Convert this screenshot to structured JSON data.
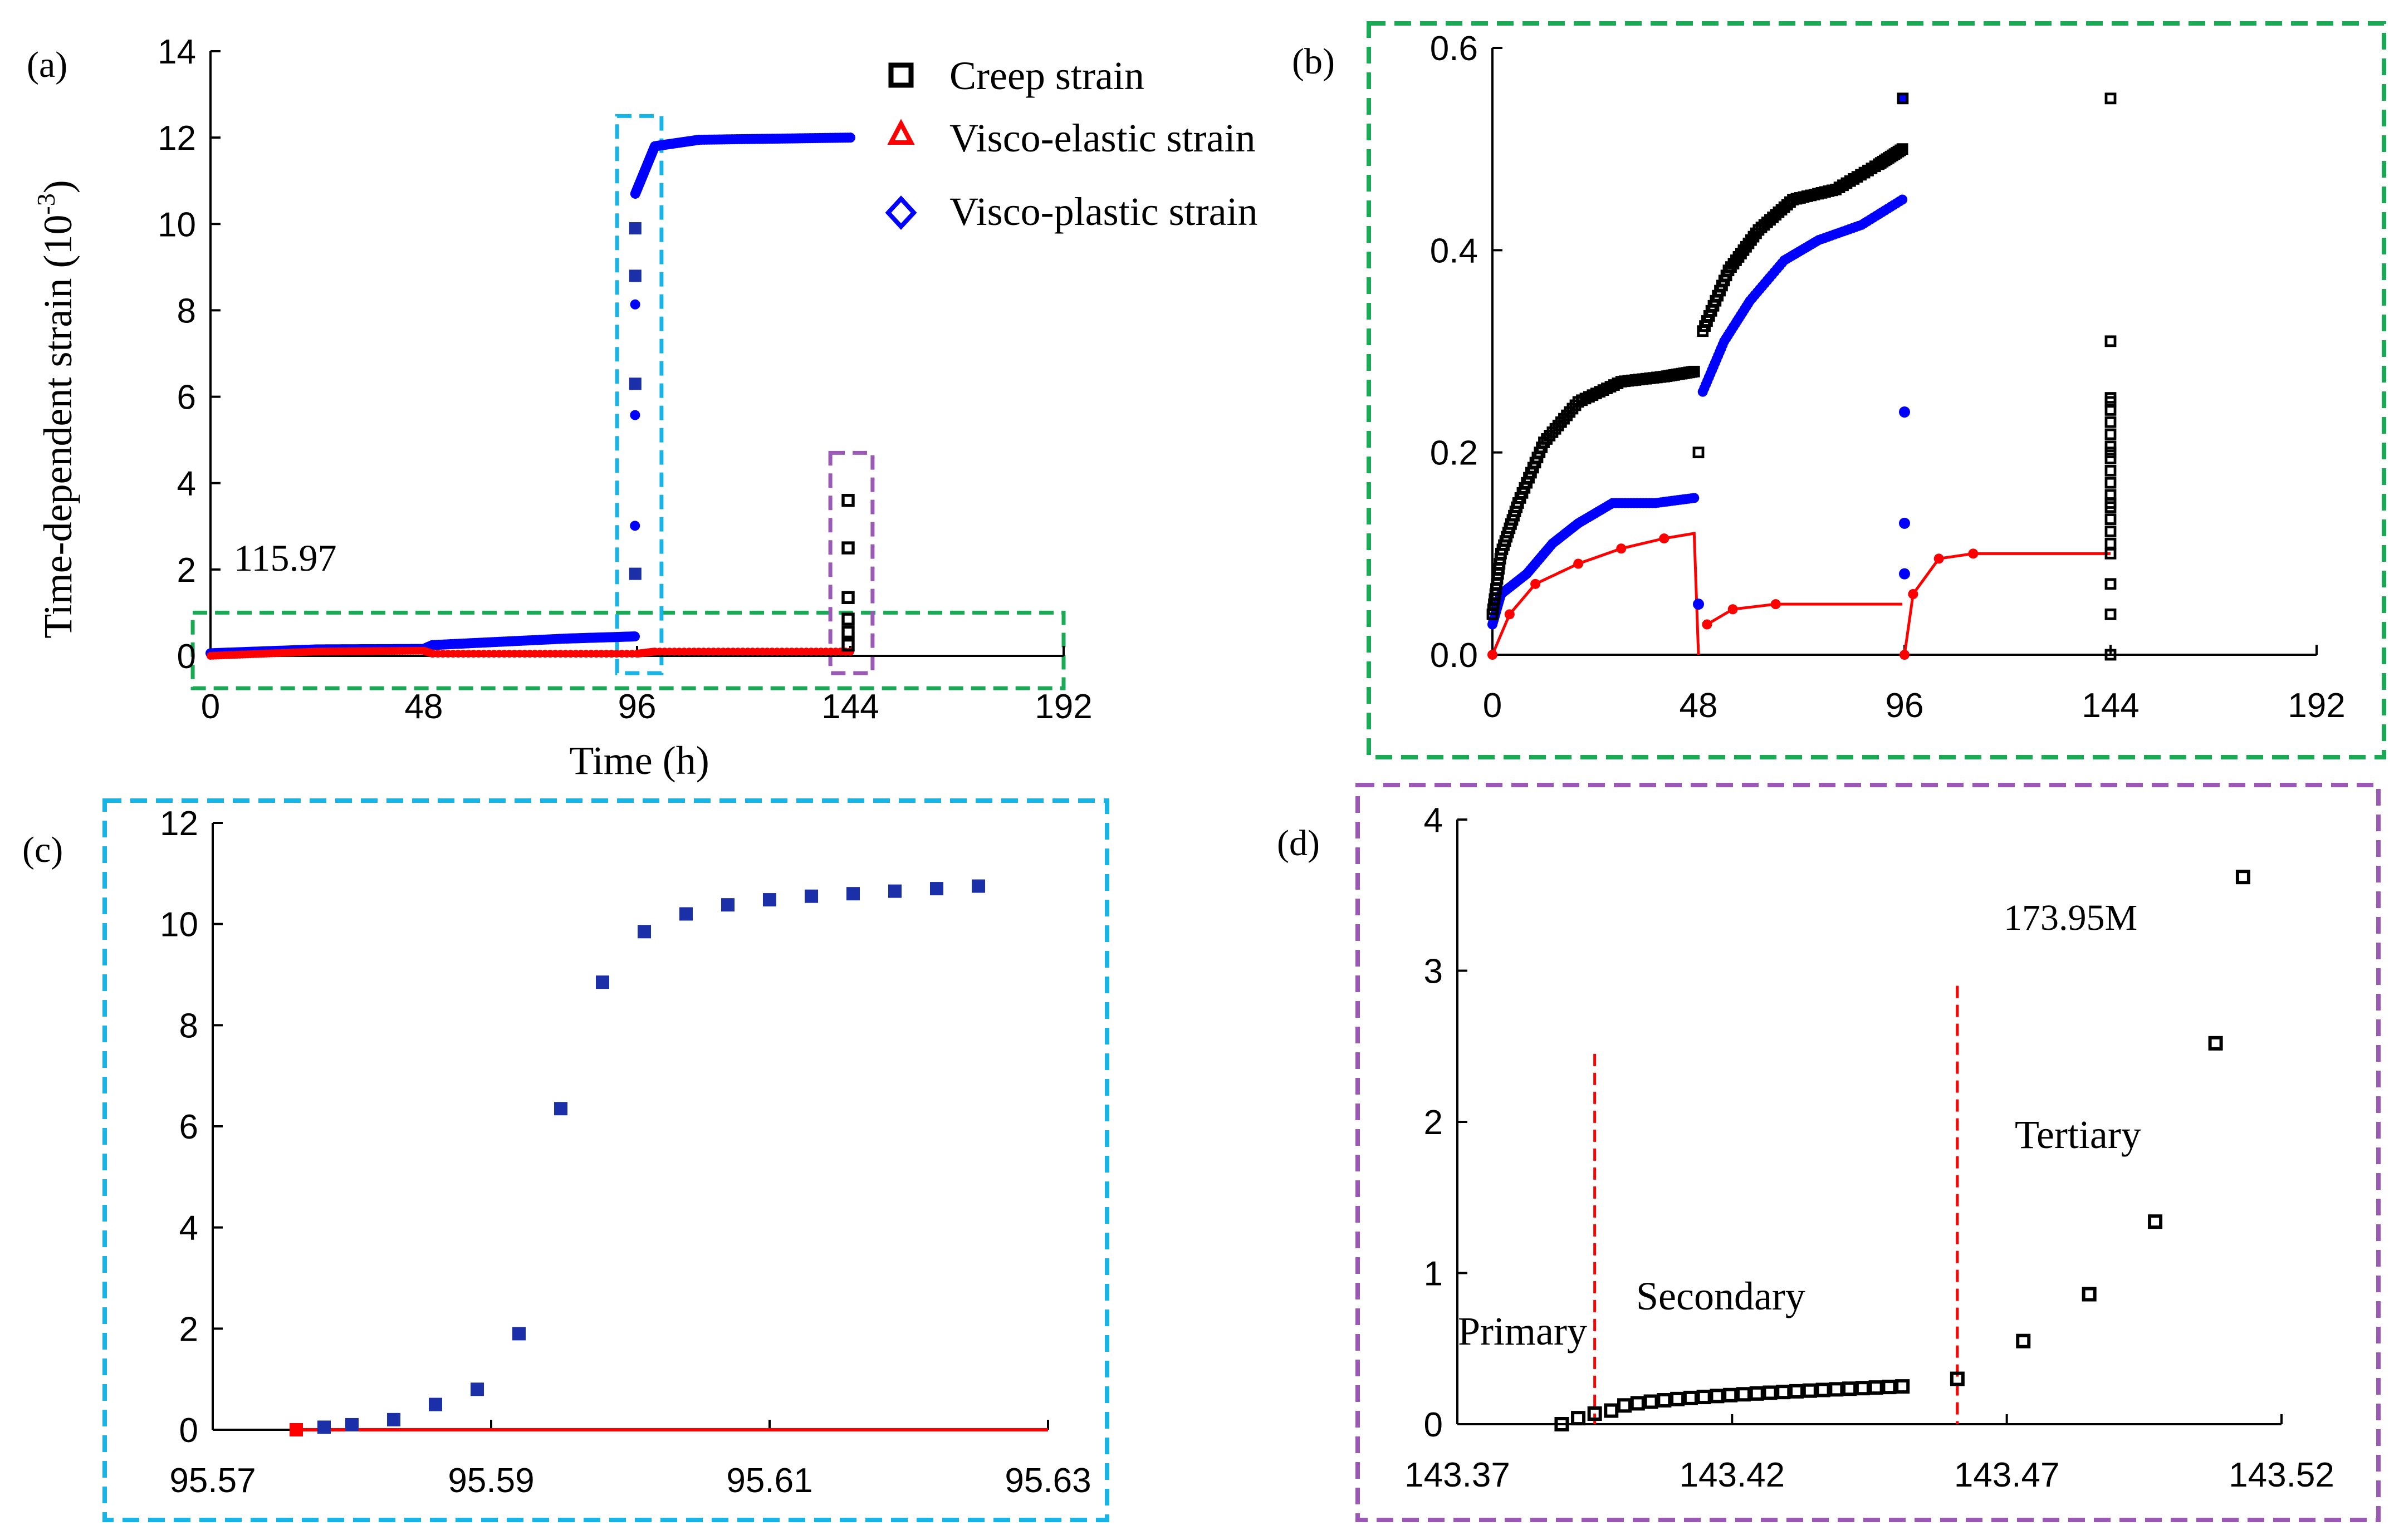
{
  "colors": {
    "creep": "#000000",
    "visco_elastic": "#ff0000",
    "visco_plastic": "#0000ff",
    "visco_plastic_inset": "#1a2fa8",
    "box_green": "#1aaa55",
    "box_cyan": "#18b4e6",
    "box_purple": "#9b59b6",
    "stage_line": "#ff0000"
  },
  "legend": {
    "creep": "Creep strain",
    "visco_elastic": "Visco-elastic strain",
    "visco_plastic": "Visco-plastic strain"
  },
  "chart_data": [
    {
      "panel": "(a)",
      "type": "scatter",
      "xlabel": "Time (h)",
      "ylabel_main": "Time-dependent strain (10",
      "ylabel_exp": "-3",
      "ylabel_end": ")",
      "xlim": [
        0,
        192
      ],
      "ylim": [
        0,
        14
      ],
      "xticks": [
        0,
        48,
        96,
        144,
        192
      ],
      "yticks": [
        0,
        2,
        4,
        6,
        8,
        10,
        12,
        14
      ],
      "annotation": "115.97",
      "legend_position": "top-right",
      "series": [
        {
          "name": "Creep strain",
          "points": [
            [
              95.6,
              1.9
            ],
            [
              95.6,
              6.3
            ],
            [
              95.6,
              8.8
            ],
            [
              95.6,
              9.9
            ],
            [
              143.5,
              0.25
            ],
            [
              143.5,
              0.55
            ],
            [
              143.5,
              0.85
            ],
            [
              143.5,
              1.35
            ],
            [
              143.5,
              2.5
            ],
            [
              143.5,
              3.6
            ]
          ]
        },
        {
          "name": "Visco-elastic strain",
          "points": [
            [
              0,
              0
            ],
            [
              24,
              0.1
            ],
            [
              48,
              0.12
            ],
            [
              50,
              0.05
            ],
            [
              96,
              0.05
            ],
            [
              100,
              0.1
            ],
            [
              144,
              0.1
            ]
          ]
        },
        {
          "name": "Visco-plastic strain",
          "points": [
            [
              0,
              0.06
            ],
            [
              24,
              0.15
            ],
            [
              48,
              0.16
            ],
            [
              50,
              0.25
            ],
            [
              80,
              0.4
            ],
            [
              95.5,
              0.45
            ],
            [
              95.6,
              10.7
            ],
            [
              100,
              11.8
            ],
            [
              110,
              11.95
            ],
            [
              144,
              12.0
            ]
          ]
        }
      ]
    },
    {
      "panel": "(b)",
      "type": "scatter",
      "xlim": [
        0,
        192
      ],
      "ylim": [
        0,
        0.6
      ],
      "xticks": [
        0,
        48,
        96,
        144,
        192
      ],
      "yticks": [
        "0.0",
        "0.2",
        "0.4",
        "0.6"
      ],
      "series": [
        {
          "name": "Creep strain",
          "points": [
            [
              0,
              0.04
            ],
            [
              2,
              0.1
            ],
            [
              6,
              0.15
            ],
            [
              12,
              0.21
            ],
            [
              20,
              0.25
            ],
            [
              30,
              0.27
            ],
            [
              40,
              0.275
            ],
            [
              47,
              0.28
            ],
            [
              48,
              0.2
            ],
            [
              49,
              0.32
            ],
            [
              55,
              0.38
            ],
            [
              62,
              0.42
            ],
            [
              70,
              0.45
            ],
            [
              80,
              0.46
            ],
            [
              90,
              0.485
            ],
            [
              95.5,
              0.5
            ],
            [
              95.6,
              0.55
            ],
            [
              144,
              0.55
            ],
            [
              144,
              0.31
            ],
            [
              144,
              0.25
            ],
            [
              144,
              0.2
            ],
            [
              144,
              0.15
            ],
            [
              144,
              0.1
            ],
            [
              144,
              0.07
            ],
            [
              144,
              0.04
            ],
            [
              144,
              0.0
            ]
          ]
        },
        {
          "name": "Visco-elastic strain",
          "points": [
            [
              0,
              0
            ],
            [
              4,
              0.04
            ],
            [
              10,
              0.07
            ],
            [
              20,
              0.09
            ],
            [
              30,
              0.105
            ],
            [
              40,
              0.115
            ],
            [
              47,
              0.12
            ],
            [
              48,
              0.0
            ],
            [
              50,
              0.03
            ],
            [
              56,
              0.045
            ],
            [
              66,
              0.05
            ],
            [
              80,
              0.05
            ],
            [
              95.5,
              0.05
            ],
            [
              96,
              0.0
            ],
            [
              98,
              0.06
            ],
            [
              104,
              0.095
            ],
            [
              112,
              0.1
            ],
            [
              124,
              0.1
            ],
            [
              144,
              0.1
            ]
          ]
        },
        {
          "name": "Visco-plastic strain",
          "points": [
            [
              0,
              0.03
            ],
            [
              2,
              0.06
            ],
            [
              8,
              0.08
            ],
            [
              14,
              0.11
            ],
            [
              20,
              0.13
            ],
            [
              28,
              0.15
            ],
            [
              38,
              0.15
            ],
            [
              47,
              0.155
            ],
            [
              48,
              0.05
            ],
            [
              49,
              0.26
            ],
            [
              54,
              0.31
            ],
            [
              60,
              0.35
            ],
            [
              68,
              0.39
            ],
            [
              76,
              0.41
            ],
            [
              86,
              0.425
            ],
            [
              95.5,
              0.45
            ],
            [
              95.6,
              0.55
            ],
            [
              96,
              0.24
            ],
            [
              96,
              0.13
            ],
            [
              96,
              0.08
            ]
          ]
        }
      ]
    },
    {
      "panel": "(c)",
      "type": "scatter",
      "xlim": [
        95.57,
        95.63
      ],
      "ylim": [
        0,
        12
      ],
      "xticks": [
        "95.57",
        "95.59",
        "95.61",
        "95.63"
      ],
      "yticks": [
        0,
        2,
        4,
        6,
        8,
        10,
        12
      ],
      "series": [
        {
          "name": "Visco-plastic strain",
          "points": [
            [
              95.576,
              0.0
            ],
            [
              95.578,
              0.05
            ],
            [
              95.58,
              0.1
            ],
            [
              95.583,
              0.2
            ],
            [
              95.586,
              0.5
            ],
            [
              95.589,
              0.8
            ],
            [
              95.592,
              1.9
            ],
            [
              95.595,
              6.35
            ],
            [
              95.598,
              8.85
            ],
            [
              95.601,
              9.85
            ],
            [
              95.604,
              10.2
            ],
            [
              95.607,
              10.38
            ],
            [
              95.61,
              10.48
            ],
            [
              95.613,
              10.55
            ],
            [
              95.616,
              10.6
            ],
            [
              95.619,
              10.65
            ],
            [
              95.622,
              10.7
            ],
            [
              95.625,
              10.75
            ]
          ]
        },
        {
          "name": "Visco-elastic strain",
          "line": [
            [
              95.576,
              0.0
            ],
            [
              95.63,
              0.0
            ]
          ]
        }
      ]
    },
    {
      "panel": "(d)",
      "type": "scatter",
      "xlim": [
        143.37,
        143.52
      ],
      "ylim": [
        0,
        4
      ],
      "xticks": [
        "143.37",
        "143.42",
        "143.47",
        "143.52"
      ],
      "yticks": [
        0,
        1,
        2,
        3,
        4
      ],
      "stage_boundaries": [
        143.395,
        143.461
      ],
      "labels": {
        "primary": "Primary",
        "secondary": "Secondary",
        "tertiary": "Tertiary",
        "stress": "173.95M"
      },
      "series": [
        {
          "name": "Creep strain",
          "points": [
            [
              143.389,
              0.0
            ],
            [
              143.392,
              0.04
            ],
            [
              143.395,
              0.07
            ],
            [
              143.461,
              0.3
            ],
            [
              143.473,
              0.55
            ],
            [
              143.485,
              0.86
            ],
            [
              143.497,
              1.34
            ],
            [
              143.508,
              2.52
            ],
            [
              143.513,
              3.62
            ]
          ]
        }
      ]
    }
  ]
}
